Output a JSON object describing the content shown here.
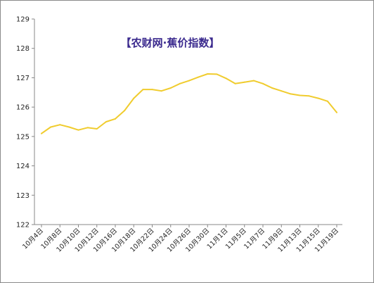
{
  "chart_data": {
    "type": "line",
    "title": "【农财网·蕉价指数】",
    "xlabel": "",
    "ylabel": "",
    "ylim": [
      122,
      129
    ],
    "yticks": [
      122,
      123,
      124,
      125,
      126,
      127,
      128,
      129
    ],
    "x_tick_labels": [
      "10月4日",
      "10月8日",
      "10月10日",
      "10月12日",
      "10月16日",
      "10月18日",
      "10月22日",
      "10月24日",
      "10月26日",
      "10月30日",
      "11月1日",
      "11月5日",
      "11月7日",
      "11月9日",
      "11月13日",
      "11月15日",
      "11月19日"
    ],
    "grid": false,
    "series": [
      {
        "color": "#f0cc2e",
        "values": [
          125.1,
          125.32,
          125.4,
          125.32,
          125.22,
          125.3,
          125.26,
          125.5,
          125.6,
          125.88,
          126.3,
          126.6,
          126.6,
          126.55,
          126.65,
          126.8,
          126.9,
          127.02,
          127.13,
          127.12,
          126.98,
          126.8,
          126.85,
          126.9,
          126.8,
          126.65,
          126.55,
          126.45,
          126.4,
          126.38,
          126.3,
          126.2,
          125.82
        ]
      }
    ]
  }
}
